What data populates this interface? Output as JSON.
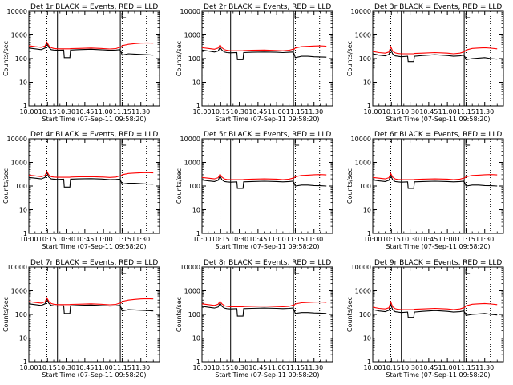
{
  "figure": {
    "x_range_min": [
      0,
      105
    ],
    "x_ticks": [
      {
        "min": 0,
        "label": "10:00"
      },
      {
        "min": 15,
        "label": "10:15"
      },
      {
        "min": 30,
        "label": "10:30"
      },
      {
        "min": 45,
        "label": "10:45"
      },
      {
        "min": 60,
        "label": "11:00"
      },
      {
        "min": 75,
        "label": "11:15"
      },
      {
        "min": 90,
        "label": "11:30"
      }
    ],
    "y_ticks": [
      {
        "value": 1,
        "label": "1"
      },
      {
        "value": 10,
        "label": "10"
      },
      {
        "value": 100,
        "label": "100"
      },
      {
        "value": 1000,
        "label": "1000"
      },
      {
        "value": 10000,
        "label": "10000"
      }
    ],
    "colors": {
      "events": "#000000",
      "lld": "#ff0000",
      "axis": "#000000"
    },
    "vertical_markers": {
      "dotted_min": [
        14.5,
        75.0,
        94.5
      ],
      "solid_min": [
        23.0,
        73.5
      ]
    }
  },
  "chart_data": [
    {
      "type": "line",
      "title": "Det 1r BLACK = Events, RED = LLD",
      "xlabel": "Start Time (07-Sep-11 09:58:20)",
      "ylabel": "Counts/sec",
      "ylim": [
        1,
        10000
      ],
      "yscale": "log",
      "x": [
        0,
        5,
        10,
        13,
        14.5,
        16,
        18,
        20,
        23,
        28,
        28.5,
        33,
        33.5,
        40,
        50,
        60,
        65,
        70,
        73,
        74,
        75,
        80,
        85,
        90,
        95,
        100
      ],
      "series": [
        {
          "name": "BLACK = Events",
          "color": "#000000",
          "values": [
            280,
            260,
            240,
            280,
            450,
            300,
            240,
            230,
            225,
            230,
            110,
            110,
            230,
            240,
            250,
            235,
            225,
            230,
            240,
            200,
            140,
            160,
            155,
            150,
            145,
            140
          ]
        },
        {
          "name": "RED = LLD",
          "color": "#ff0000",
          "values": [
            350,
            320,
            300,
            340,
            500,
            360,
            290,
            270,
            260,
            260,
            260,
            260,
            265,
            270,
            280,
            265,
            255,
            265,
            300,
            300,
            350,
            400,
            430,
            450,
            460,
            450
          ]
        }
      ]
    },
    {
      "type": "line",
      "title": "Det 2r BLACK = Events, RED = LLD",
      "xlabel": "Start Time (07-Sep-11 09:58:20)",
      "ylabel": "Counts/sec",
      "ylim": [
        1,
        10000
      ],
      "yscale": "log",
      "x": [
        0,
        5,
        10,
        13,
        14.5,
        16,
        18,
        20,
        23,
        28,
        28.5,
        33,
        33.5,
        40,
        50,
        60,
        65,
        70,
        73,
        74,
        75,
        80,
        85,
        90,
        95,
        100
      ],
      "series": [
        {
          "name": "BLACK = Events",
          "color": "#000000",
          "values": [
            230,
            210,
            190,
            210,
            300,
            230,
            190,
            180,
            175,
            180,
            90,
            90,
            180,
            185,
            190,
            185,
            180,
            185,
            190,
            160,
            110,
            125,
            125,
            120,
            118,
            115
          ]
        },
        {
          "name": "RED = LLD",
          "color": "#ff0000",
          "values": [
            290,
            270,
            250,
            280,
            380,
            290,
            240,
            225,
            215,
            215,
            215,
            215,
            220,
            225,
            230,
            220,
            215,
            225,
            250,
            250,
            280,
            320,
            330,
            340,
            345,
            335
          ]
        }
      ]
    },
    {
      "type": "line",
      "title": "Det 3r BLACK = Events, RED = LLD",
      "xlabel": "Start Time (07-Sep-11 09:58:20)",
      "ylabel": "Counts/sec",
      "ylim": [
        1,
        10000
      ],
      "yscale": "log",
      "x": [
        0,
        5,
        10,
        13,
        14.5,
        16,
        18,
        20,
        23,
        28,
        28.5,
        33,
        33.5,
        40,
        50,
        60,
        65,
        70,
        73,
        74,
        75,
        80,
        85,
        90,
        95,
        100
      ],
      "series": [
        {
          "name": "BLACK = Events",
          "color": "#000000",
          "values": [
            160,
            140,
            130,
            150,
            240,
            160,
            130,
            125,
            120,
            125,
            75,
            75,
            125,
            135,
            145,
            135,
            125,
            130,
            140,
            120,
            90,
            100,
            105,
            110,
            100,
            95
          ]
        },
        {
          "name": "RED = LLD",
          "color": "#ff0000",
          "values": [
            200,
            180,
            170,
            190,
            320,
            210,
            175,
            165,
            160,
            160,
            160,
            160,
            165,
            170,
            180,
            170,
            160,
            170,
            190,
            200,
            230,
            270,
            280,
            290,
            275,
            260
          ]
        }
      ]
    },
    {
      "type": "line",
      "title": "Det 4r BLACK = Events, RED = LLD",
      "xlabel": "Start Time (07-Sep-11 09:58:20)",
      "ylabel": "Counts/sec",
      "ylim": [
        1,
        10000
      ],
      "yscale": "log",
      "x": [
        0,
        5,
        10,
        13,
        14.5,
        16,
        18,
        20,
        23,
        28,
        28.5,
        33,
        33.5,
        40,
        50,
        60,
        65,
        70,
        73,
        74,
        75,
        80,
        85,
        90,
        95,
        100
      ],
      "series": [
        {
          "name": "BLACK = Events",
          "color": "#000000",
          "values": [
            230,
            215,
            200,
            230,
            380,
            240,
            200,
            195,
            190,
            195,
            90,
            90,
            195,
            200,
            205,
            195,
            185,
            190,
            195,
            160,
            120,
            130,
            130,
            125,
            122,
            120
          ]
        },
        {
          "name": "RED = LLD",
          "color": "#ff0000",
          "values": [
            290,
            270,
            250,
            280,
            420,
            300,
            250,
            240,
            235,
            235,
            235,
            235,
            240,
            245,
            250,
            240,
            230,
            240,
            270,
            270,
            300,
            340,
            355,
            365,
            370,
            360
          ]
        }
      ]
    },
    {
      "type": "line",
      "title": "Det 5r BLACK = Events, RED = LLD",
      "xlabel": "Start Time (07-Sep-11 09:58:20)",
      "ylabel": "Counts/sec",
      "ylim": [
        1,
        10000
      ],
      "yscale": "log",
      "x": [
        0,
        5,
        10,
        13,
        14.5,
        16,
        18,
        20,
        23,
        28,
        28.5,
        33,
        33.5,
        40,
        50,
        60,
        65,
        70,
        73,
        74,
        75,
        80,
        85,
        90,
        95,
        100
      ],
      "series": [
        {
          "name": "BLACK = Events",
          "color": "#000000",
          "values": [
            180,
            165,
            155,
            175,
            270,
            185,
            155,
            150,
            145,
            150,
            80,
            80,
            150,
            155,
            160,
            155,
            150,
            155,
            160,
            135,
            100,
            110,
            110,
            105,
            103,
            100
          ]
        },
        {
          "name": "RED = LLD",
          "color": "#ff0000",
          "values": [
            230,
            215,
            200,
            225,
            320,
            240,
            200,
            190,
            185,
            185,
            185,
            185,
            190,
            195,
            200,
            195,
            185,
            195,
            215,
            220,
            250,
            280,
            290,
            300,
            305,
            295
          ]
        }
      ]
    },
    {
      "type": "line",
      "title": "Det 6r BLACK = Events, RED = LLD",
      "xlabel": "Start Time (07-Sep-11 09:58:20)",
      "ylabel": "Counts/sec",
      "ylim": [
        1,
        10000
      ],
      "yscale": "log",
      "x": [
        0,
        5,
        10,
        13,
        14.5,
        16,
        18,
        20,
        23,
        28,
        28.5,
        33,
        33.5,
        40,
        50,
        60,
        65,
        70,
        73,
        74,
        75,
        80,
        85,
        90,
        95,
        100
      ],
      "series": [
        {
          "name": "BLACK = Events",
          "color": "#000000",
          "values": [
            180,
            165,
            155,
            175,
            280,
            185,
            155,
            150,
            145,
            150,
            80,
            80,
            150,
            155,
            160,
            155,
            150,
            155,
            160,
            135,
            100,
            110,
            110,
            105,
            103,
            100
          ]
        },
        {
          "name": "RED = LLD",
          "color": "#ff0000",
          "values": [
            230,
            215,
            200,
            225,
            340,
            240,
            200,
            190,
            185,
            185,
            185,
            185,
            190,
            195,
            200,
            195,
            185,
            195,
            215,
            220,
            250,
            280,
            290,
            300,
            305,
            295
          ]
        }
      ]
    },
    {
      "type": "line",
      "title": "Det 7r BLACK = Events, RED = LLD",
      "xlabel": "Start Time (07-Sep-11 09:58:20)",
      "ylabel": "Counts/sec",
      "ylim": [
        1,
        10000
      ],
      "yscale": "log",
      "x": [
        0,
        5,
        10,
        13,
        14.5,
        16,
        18,
        20,
        23,
        28,
        28.5,
        33,
        33.5,
        40,
        50,
        60,
        65,
        70,
        73,
        74,
        75,
        80,
        85,
        90,
        95,
        100
      ],
      "series": [
        {
          "name": "BLACK = Events",
          "color": "#000000",
          "values": [
            280,
            260,
            240,
            280,
            450,
            300,
            240,
            230,
            225,
            230,
            110,
            110,
            230,
            240,
            250,
            235,
            225,
            230,
            240,
            200,
            140,
            160,
            155,
            150,
            145,
            140
          ]
        },
        {
          "name": "RED = LLD",
          "color": "#ff0000",
          "values": [
            350,
            320,
            300,
            340,
            500,
            360,
            290,
            270,
            260,
            260,
            260,
            260,
            265,
            270,
            280,
            265,
            255,
            265,
            300,
            300,
            350,
            400,
            430,
            450,
            460,
            450
          ]
        }
      ]
    },
    {
      "type": "line",
      "title": "Det 8r BLACK = Events, RED = LLD",
      "xlabel": "Start Time (07-Sep-11 09:58:20)",
      "ylabel": "Counts/sec",
      "ylim": [
        1,
        10000
      ],
      "yscale": "log",
      "x": [
        0,
        5,
        10,
        13,
        14.5,
        16,
        18,
        20,
        23,
        28,
        28.5,
        33,
        33.5,
        40,
        50,
        60,
        65,
        70,
        73,
        74,
        75,
        80,
        85,
        90,
        95,
        100
      ],
      "series": [
        {
          "name": "BLACK = Events",
          "color": "#000000",
          "values": [
            220,
            200,
            185,
            205,
            300,
            220,
            185,
            175,
            170,
            175,
            85,
            85,
            175,
            180,
            185,
            180,
            175,
            180,
            185,
            155,
            110,
            120,
            120,
            115,
            113,
            110
          ]
        },
        {
          "name": "RED = LLD",
          "color": "#ff0000",
          "values": [
            280,
            260,
            240,
            270,
            360,
            280,
            235,
            220,
            210,
            210,
            210,
            210,
            215,
            220,
            225,
            215,
            210,
            220,
            245,
            245,
            275,
            310,
            320,
            330,
            335,
            325
          ]
        }
      ]
    },
    {
      "type": "line",
      "title": "Det 9r BLACK = Events, RED = LLD",
      "xlabel": "Start Time (07-Sep-11 09:58:20)",
      "ylabel": "Counts/sec",
      "ylim": [
        1,
        10000
      ],
      "yscale": "log",
      "x": [
        0,
        5,
        10,
        13,
        14.5,
        16,
        18,
        20,
        23,
        28,
        28.5,
        33,
        33.5,
        40,
        50,
        60,
        65,
        70,
        73,
        74,
        75,
        80,
        85,
        90,
        95,
        100
      ],
      "series": [
        {
          "name": "BLACK = Events",
          "color": "#000000",
          "values": [
            160,
            140,
            130,
            150,
            260,
            160,
            130,
            125,
            120,
            125,
            75,
            75,
            125,
            135,
            145,
            135,
            125,
            130,
            140,
            120,
            90,
            100,
            105,
            110,
            100,
            95
          ]
        },
        {
          "name": "RED = LLD",
          "color": "#ff0000",
          "values": [
            200,
            180,
            170,
            190,
            340,
            210,
            175,
            165,
            160,
            160,
            160,
            160,
            165,
            170,
            180,
            170,
            160,
            170,
            190,
            200,
            230,
            270,
            280,
            290,
            275,
            260
          ]
        }
      ]
    }
  ]
}
